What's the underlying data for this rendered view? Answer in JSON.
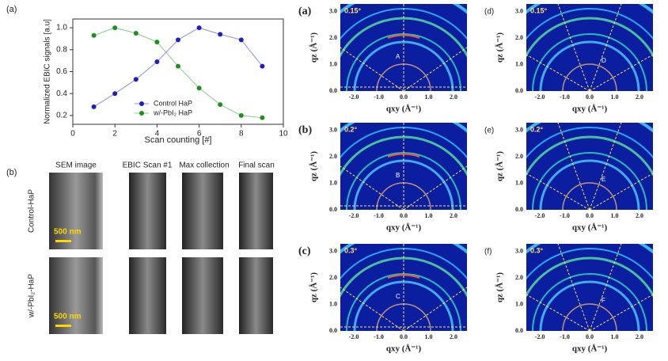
{
  "chart_data": {
    "type": "line",
    "panel_label": "(a)",
    "x_label": "Scan counting [#]",
    "y_label": "Normalized EBIC signals [a.u]",
    "x": [
      1,
      2,
      3,
      4,
      5,
      6,
      7,
      8,
      9
    ],
    "series": [
      {
        "name": "Control HaP",
        "color": "#1f1fbf",
        "values": [
          0.28,
          0.4,
          0.53,
          0.69,
          0.89,
          1.0,
          0.94,
          0.89,
          0.65
        ]
      },
      {
        "name": "w/-PbI₂ HaP",
        "color": "#1f8f1f",
        "values": [
          0.93,
          1.0,
          0.95,
          0.87,
          0.65,
          0.45,
          0.3,
          0.2,
          0.18
        ]
      }
    ],
    "xlim": [
      0,
      10
    ],
    "xticks": [
      0,
      2,
      4,
      6,
      8,
      10
    ],
    "ylim": [
      0.12,
      1.08
    ],
    "yticks": [
      0.2,
      0.4,
      0.6,
      0.8,
      {
        "value": 1,
        "label": "1.0"
      }
    ],
    "legend": "lower center"
  },
  "figure_b": {
    "label": "(b)",
    "columns": [
      "SEM image",
      "EBIC Scan #1",
      "Max collection",
      "Final scan"
    ],
    "rows": [
      "Control-HaP",
      "w/-PbI₂-HaP"
    ],
    "scale_bar": "500 nm"
  },
  "giwaxs": {
    "x_label": "qxy (Å⁻¹)",
    "y_label": "qz (Å⁻¹)",
    "x_ticks": [
      "-2.0",
      "-1.0",
      "0.0",
      "1.0",
      "2.0"
    ],
    "y_ticks": [
      "0.0",
      "1.0",
      "2.0",
      "3.0"
    ],
    "panels": [
      {
        "label": "(a)",
        "angle": "0.15°",
        "annotation": "A"
      },
      {
        "label": "(b)",
        "angle": "0.2°",
        "annotation": "B"
      },
      {
        "label": "(c)",
        "angle": "0.3°",
        "annotation": "C"
      },
      {
        "label": "(d)",
        "angle": "0.15°",
        "annotation": "D"
      },
      {
        "label": "(e)",
        "angle": "0.2°",
        "annotation": "E"
      },
      {
        "label": "(f)",
        "angle": "0.3°",
        "annotation": "F"
      }
    ]
  }
}
